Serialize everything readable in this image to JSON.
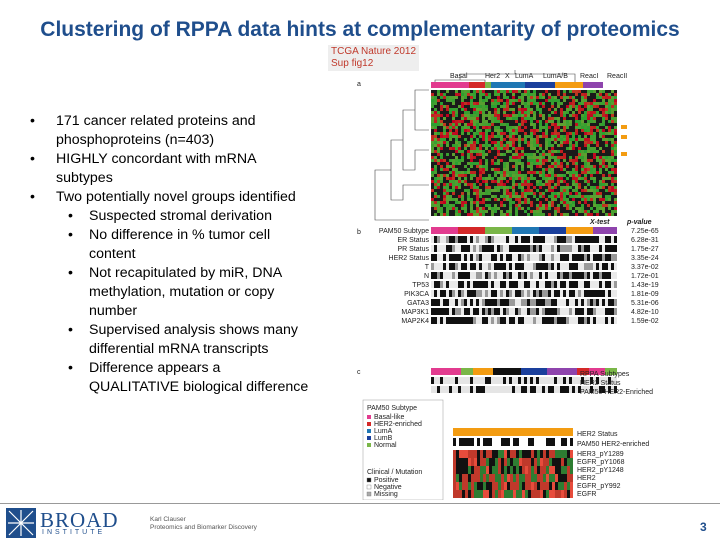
{
  "title": "Clustering of RPPA data hints at complementarity of proteomics",
  "citation": [
    "TCGA Nature 2012",
    "Sup fig12"
  ],
  "bullets": [
    {
      "text": "171 cancer related proteins and phosphoproteins (n=403)"
    },
    {
      "text": "HIGHLY concordant with mRNA subtypes"
    },
    {
      "text": "Two potentially novel groups identified",
      "sub": [
        "Suspected stromal derivation",
        "No difference in % tumor cell content",
        "Not recapitulated by miR, DNA methylation, mutation or copy number",
        "Supervised analysis shows many differential mRNA transcripts",
        "Difference appears a QUALITATIVE biological difference"
      ]
    }
  ],
  "figure": {
    "panel_a": "a",
    "panel_b": "b",
    "panel_c": "c",
    "cluster_labels": [
      "Basal",
      "Her2",
      "X",
      "LumA",
      "LumA/B",
      "ReacI",
      "ReacII"
    ],
    "cluster_colors": [
      "#e23b8f",
      "#d42828",
      "#7ab648",
      "#1f77b4",
      "#1a3f9c",
      "#f39c12",
      "#8e44ad"
    ],
    "stats_header": [
      "X-test",
      "p-value"
    ],
    "row_labels": [
      "PAM50 Subtype",
      "ER Status",
      "PR Status",
      "HER2 Status",
      "T",
      "N",
      "TP53",
      "PIK3CA",
      "GATA3",
      "MAP3K1",
      "MAP2K4"
    ],
    "pvalues": [
      "7.25e-65",
      "6.28e-31",
      "1.75e-27",
      "3.35e-24",
      "3.37e-02",
      "1.72e-01",
      "1.43e-19",
      "1.81e-09",
      "5.31e-06",
      "4.82e-10",
      "1.59e-02"
    ],
    "panel_c_labels": [
      "RPPA Subtypes",
      "HER2 Status",
      "PAM50 HER2-Enriched"
    ],
    "panel_c_lower_labels": [
      "HER2 Status",
      "PAM50 HER2-enriched",
      "HER3_pY1289",
      "EGFR_pY1068",
      "HER2_pY1248",
      "HER2",
      "EGFR_pY992",
      "EGFR"
    ],
    "legend_title1": "PAM50 Subtype",
    "legend_items1": [
      "Basal-like",
      "HER2-enriched",
      "LumA",
      "LumB",
      "Normal"
    ],
    "legend_title2": "Clinical / Mutation",
    "legend_items2": [
      "Positive",
      "Negative",
      "Missing"
    ]
  },
  "footer": {
    "logo_main": "BROAD",
    "logo_sub": "INSTITUTE",
    "author": "Karl Clauser",
    "department": "Proteomics and Biomarker Discovery",
    "page": "3"
  }
}
